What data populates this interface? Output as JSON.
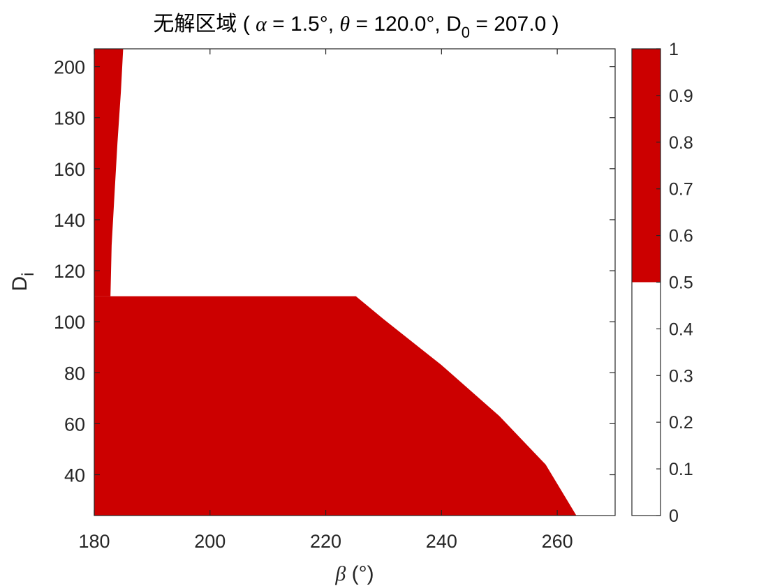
{
  "chart_data": {
    "type": "heatmap",
    "title": {
      "prefix": "无解区域 ( ",
      "alpha_symbol": "α",
      "alpha_text": " = 1.5°, ",
      "theta_symbol": "θ",
      "theta_text": " = 120.0°, D",
      "d0_sub": "0",
      "d0_text": " = 207.0 )"
    },
    "xlabel": {
      "symbol": "β",
      "unit": " (°)"
    },
    "ylabel": {
      "main": "D",
      "sub": "i"
    },
    "xlim": [
      180,
      270
    ],
    "ylim": [
      24,
      207
    ],
    "xticks": [
      180,
      200,
      220,
      240,
      260
    ],
    "yticks": [
      40,
      60,
      80,
      100,
      120,
      140,
      160,
      180,
      200
    ],
    "colormap": [
      {
        "range": [
          0,
          0.5
        ],
        "color": "#ffffff"
      },
      {
        "range": [
          0.5,
          1
        ],
        "color": "#cc0000"
      }
    ],
    "colorbar": {
      "ticks": [
        "0",
        "0.1",
        "0.2",
        "0.3",
        "0.4",
        "0.5",
        "0.6",
        "0.7",
        "0.8",
        "0.9",
        "1"
      ],
      "clim": [
        0,
        1
      ]
    },
    "no_solution_regions": [
      {
        "name": "upper-left strip",
        "boundary": [
          [
            180,
            207
          ],
          [
            185,
            207
          ],
          [
            184.6,
            190
          ],
          [
            184,
            170
          ],
          [
            183.5,
            150
          ],
          [
            183,
            130
          ],
          [
            182.8,
            110
          ],
          [
            180,
            110
          ]
        ]
      },
      {
        "name": "lower region",
        "boundary": [
          [
            180,
            110
          ],
          [
            225.2,
            110
          ],
          [
            230,
            101
          ],
          [
            240,
            83
          ],
          [
            250,
            63
          ],
          [
            258,
            44
          ],
          [
            263.3,
            24
          ],
          [
            180,
            24
          ]
        ]
      }
    ],
    "grid": false
  }
}
